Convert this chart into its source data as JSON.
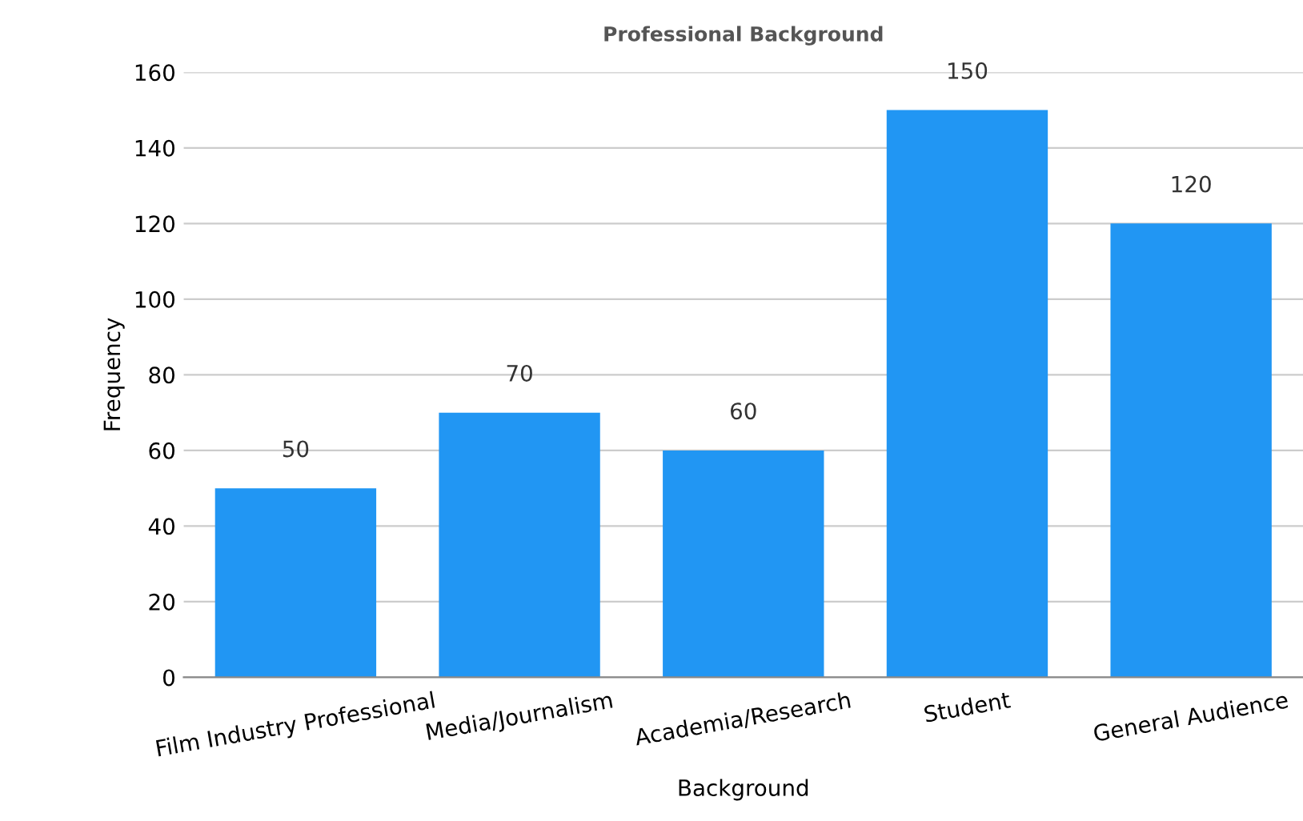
{
  "chart_data": {
    "type": "bar",
    "title": "Professional Background",
    "xlabel": "Background",
    "ylabel": "Frequency",
    "categories": [
      "Film Industry Professional",
      "Media/Journalism",
      "Academia/Research",
      "Student",
      "General Audience"
    ],
    "values": [
      50,
      70,
      60,
      150,
      120
    ],
    "color": "#2196f3",
    "ylim": [
      0,
      160
    ],
    "yticks": [
      0,
      20,
      40,
      60,
      80,
      100,
      120,
      140,
      160
    ],
    "grid": "y",
    "data_labels": true
  }
}
